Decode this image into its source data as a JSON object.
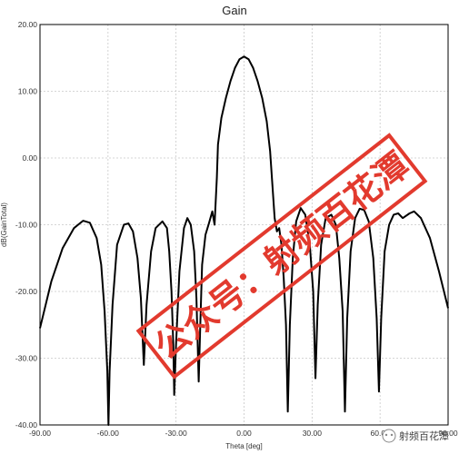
{
  "chart_data": {
    "type": "line",
    "title": "Gain",
    "xlabel": "Theta [deg]",
    "ylabel": "dB(GainTotal)",
    "xlim": [
      -90,
      90
    ],
    "ylim": [
      -40,
      20
    ],
    "grid": true,
    "x_ticks": [
      "-90.00",
      "-60.00",
      "-30.00",
      "0.00",
      "30.00",
      "60.00",
      "90.00"
    ],
    "y_ticks": [
      "20.00",
      "10.00",
      "0.00",
      "-10.00",
      "-20.00",
      "-30.00",
      "-40.00"
    ],
    "series": [
      {
        "color": "#000000",
        "points": [
          [
            -90,
            -25.5
          ],
          [
            -85,
            -18.5
          ],
          [
            -80,
            -13.5
          ],
          [
            -75,
            -10.5
          ],
          [
            -71,
            -9.4
          ],
          [
            -68,
            -9.7
          ],
          [
            -65,
            -12
          ],
          [
            -63,
            -16
          ],
          [
            -61.5,
            -23
          ],
          [
            -60.3,
            -32
          ],
          [
            -59.8,
            -40
          ],
          [
            -59.3,
            -32
          ],
          [
            -58,
            -22
          ],
          [
            -56,
            -13
          ],
          [
            -53,
            -10
          ],
          [
            -51,
            -9.8
          ],
          [
            -49,
            -11
          ],
          [
            -47,
            -15
          ],
          [
            -45.5,
            -21
          ],
          [
            -44.2,
            -31
          ],
          [
            -43,
            -22
          ],
          [
            -41,
            -14
          ],
          [
            -39,
            -10.5
          ],
          [
            -36,
            -9.5
          ],
          [
            -34,
            -10.5
          ],
          [
            -33,
            -14
          ],
          [
            -32,
            -20
          ],
          [
            -31.2,
            -28
          ],
          [
            -30.8,
            -35.5
          ],
          [
            -30,
            -28
          ],
          [
            -28.5,
            -17
          ],
          [
            -26.5,
            -10.5
          ],
          [
            -25,
            -9
          ],
          [
            -23.5,
            -10
          ],
          [
            -22,
            -14
          ],
          [
            -21,
            -21
          ],
          [
            -20,
            -33.5
          ],
          [
            -19.3,
            -25
          ],
          [
            -18.5,
            -16
          ],
          [
            -17,
            -11.5
          ],
          [
            -15.5,
            -9.8
          ],
          [
            -14,
            -8
          ],
          [
            -13,
            -10
          ],
          [
            -12,
            -3
          ],
          [
            -11.5,
            2
          ],
          [
            -10,
            6
          ],
          [
            -8,
            9
          ],
          [
            -6,
            11.5
          ],
          [
            -4,
            13.5
          ],
          [
            -2,
            14.8
          ],
          [
            0,
            15.2
          ],
          [
            2,
            14.8
          ],
          [
            4,
            13.5
          ],
          [
            6,
            11.5
          ],
          [
            8,
            9
          ],
          [
            10,
            5.5
          ],
          [
            11.5,
            1
          ],
          [
            12.5,
            -4
          ],
          [
            13.5,
            -9
          ],
          [
            14.5,
            -11
          ],
          [
            15.5,
            -10.5
          ],
          [
            16.5,
            -13
          ],
          [
            17.5,
            -18
          ],
          [
            18.5,
            -25
          ],
          [
            19.3,
            -38
          ],
          [
            20.2,
            -25
          ],
          [
            21.5,
            -15
          ],
          [
            23,
            -9.5
          ],
          [
            25,
            -7.5
          ],
          [
            27,
            -8.5
          ],
          [
            29,
            -13
          ],
          [
            30.5,
            -20
          ],
          [
            31.5,
            -33
          ],
          [
            32.5,
            -22
          ],
          [
            34,
            -13
          ],
          [
            36,
            -9
          ],
          [
            38.5,
            -8.5
          ],
          [
            40.5,
            -10
          ],
          [
            42,
            -15
          ],
          [
            43.5,
            -23
          ],
          [
            44.5,
            -38
          ],
          [
            45.5,
            -24
          ],
          [
            47,
            -14
          ],
          [
            49,
            -9
          ],
          [
            51,
            -7.6
          ],
          [
            53,
            -7.8
          ],
          [
            55,
            -9.5
          ],
          [
            57,
            -15
          ],
          [
            58.5,
            -24
          ],
          [
            59.5,
            -35
          ],
          [
            60.5,
            -24
          ],
          [
            62,
            -14
          ],
          [
            64,
            -10
          ],
          [
            66,
            -8.5
          ],
          [
            68,
            -8.3
          ],
          [
            70,
            -9
          ],
          [
            73,
            -8.3
          ],
          [
            75,
            -8
          ],
          [
            78,
            -9
          ],
          [
            82,
            -12
          ],
          [
            86,
            -17
          ],
          [
            90,
            -22.5
          ]
        ]
      }
    ]
  },
  "watermark": {
    "stamp_text": "公众号：射频百花潭",
    "badge_text": "射频百花潭",
    "stamp_color": "#e23a2e"
  }
}
